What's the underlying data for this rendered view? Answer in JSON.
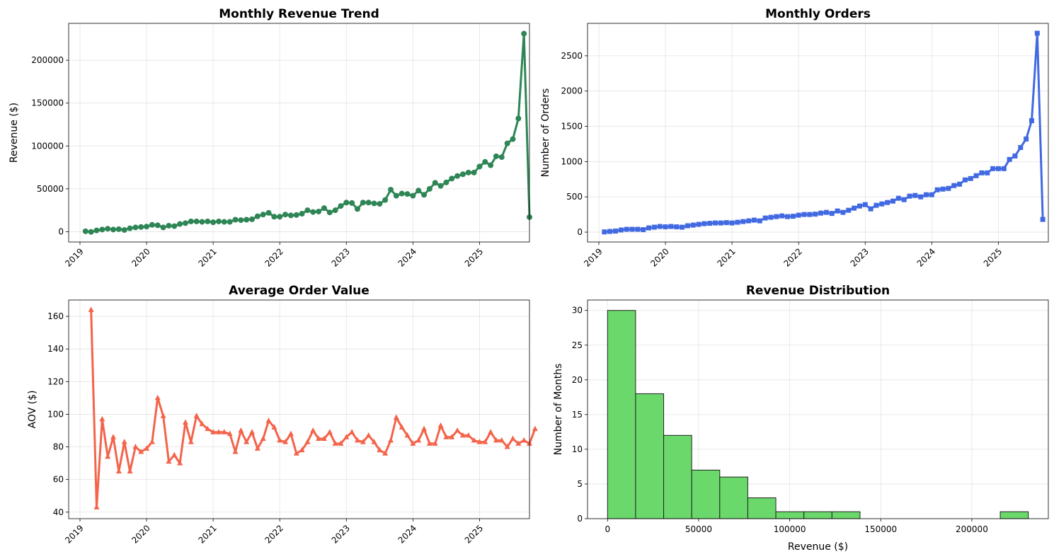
{
  "chart_data": [
    {
      "id": "revenue",
      "type": "line",
      "title": "Monthly Revenue Trend",
      "xlabel": "",
      "ylabel": "Revenue ($)",
      "color": "#2e8555",
      "marker": "circle",
      "x_ticks": [
        "2019",
        "2020",
        "2021",
        "2022",
        "2023",
        "2024",
        "2025"
      ],
      "y_ticks": [
        0,
        50000,
        100000,
        150000,
        200000
      ],
      "ylim": [
        -12000,
        243000
      ],
      "xlim_years": [
        2018.83,
        2025.75
      ],
      "grid": true,
      "series": [
        {
          "start": "2019-01",
          "values": [
            500,
            -200,
            1500,
            2500,
            3500,
            2500,
            3000,
            2000,
            4000,
            5000,
            5500,
            6000,
            8000,
            7500,
            5000,
            7000,
            6500,
            9000,
            10000,
            12000,
            12000,
            11500,
            12000,
            11000,
            12000,
            11500,
            11500,
            14000,
            13500,
            14000,
            14500,
            18000,
            20000,
            22000,
            17500,
            17500,
            20000,
            19000,
            19500,
            21000,
            25000,
            23000,
            23500,
            27500,
            22500,
            25000,
            30000,
            34000,
            33500,
            26500,
            34000,
            34000,
            33000,
            32500,
            37000,
            49000,
            42000,
            44500,
            44000,
            42000,
            48000,
            43000,
            50000,
            57000,
            53500,
            57500,
            62000,
            65000,
            67000,
            69000,
            69000,
            76000,
            81500,
            77500,
            88000,
            87000,
            103000,
            108000,
            132000,
            231000,
            17000
          ]
        }
      ]
    },
    {
      "id": "orders",
      "type": "line",
      "title": "Monthly Orders",
      "xlabel": "",
      "ylabel": "Number of Orders",
      "color": "#4169e1",
      "marker": "square",
      "x_ticks": [
        "2019",
        "2020",
        "2021",
        "2022",
        "2023",
        "2024",
        "2025"
      ],
      "y_ticks": [
        0,
        500,
        1000,
        1500,
        2000,
        2500
      ],
      "ylim": [
        -140,
        2960
      ],
      "xlim_years": [
        2018.83,
        2025.75
      ],
      "grid": true,
      "series": [
        {
          "start": "2019-01",
          "values": [
            3,
            10,
            15,
            30,
            40,
            40,
            40,
            35,
            60,
            70,
            80,
            75,
            80,
            75,
            70,
            90,
            100,
            110,
            120,
            125,
            130,
            130,
            135,
            130,
            140,
            150,
            160,
            170,
            160,
            200,
            210,
            220,
            230,
            220,
            225,
            240,
            250,
            250,
            255,
            270,
            280,
            265,
            300,
            280,
            310,
            340,
            370,
            390,
            330,
            380,
            400,
            420,
            440,
            480,
            460,
            510,
            520,
            500,
            530,
            530,
            600,
            610,
            620,
            660,
            680,
            740,
            760,
            800,
            840,
            840,
            900,
            900,
            900,
            1030,
            1080,
            1200,
            1320,
            1580,
            2820,
            180
          ]
        }
      ]
    },
    {
      "id": "aov",
      "type": "line",
      "title": "Average Order Value",
      "xlabel": "",
      "ylabel": "AOV ($)",
      "color": "#f4634a",
      "marker": "triangle",
      "x_ticks": [
        "2019",
        "2020",
        "2021",
        "2022",
        "2023",
        "2024",
        "2025"
      ],
      "y_ticks": [
        40,
        60,
        80,
        100,
        120,
        140,
        160
      ],
      "ylim": [
        36,
        170
      ],
      "xlim_years": [
        2018.83,
        2025.75
      ],
      "grid": true,
      "series": [
        {
          "start": "2019-02",
          "values": [
            164,
            43,
            97,
            74,
            86,
            65,
            83,
            65,
            80,
            77,
            79,
            83,
            110,
            99,
            71,
            75,
            70,
            95,
            83,
            99,
            94,
            91,
            89,
            89,
            89,
            88,
            77,
            90,
            83,
            89,
            79,
            85,
            96,
            92,
            84,
            83,
            88,
            76,
            78,
            83,
            90,
            85,
            85,
            89,
            82,
            82,
            86,
            89,
            84,
            83,
            87,
            83,
            78,
            76,
            84,
            98,
            92,
            87,
            82,
            84,
            91,
            82,
            82,
            93,
            86,
            86,
            90,
            87,
            87,
            84,
            83,
            83,
            89,
            84,
            84,
            80,
            85,
            82,
            84,
            82,
            91
          ]
        }
      ]
    },
    {
      "id": "distribution",
      "type": "bar",
      "title": "Revenue Distribution",
      "xlabel": "Revenue ($)",
      "ylabel": "Number of Months",
      "color": "#6bd86b",
      "x_ticks": [
        0,
        50000,
        100000,
        150000,
        200000
      ],
      "y_ticks": [
        0,
        5,
        10,
        15,
        20,
        25,
        30
      ],
      "xlim": [
        -11000,
        242000
      ],
      "ylim": [
        0,
        31.5
      ],
      "grid": true,
      "bin_start": 0,
      "bin_width": 15400,
      "values": [
        30,
        18,
        12,
        7,
        6,
        3,
        1,
        1,
        1,
        0,
        0,
        0,
        0,
        0,
        1
      ]
    }
  ]
}
